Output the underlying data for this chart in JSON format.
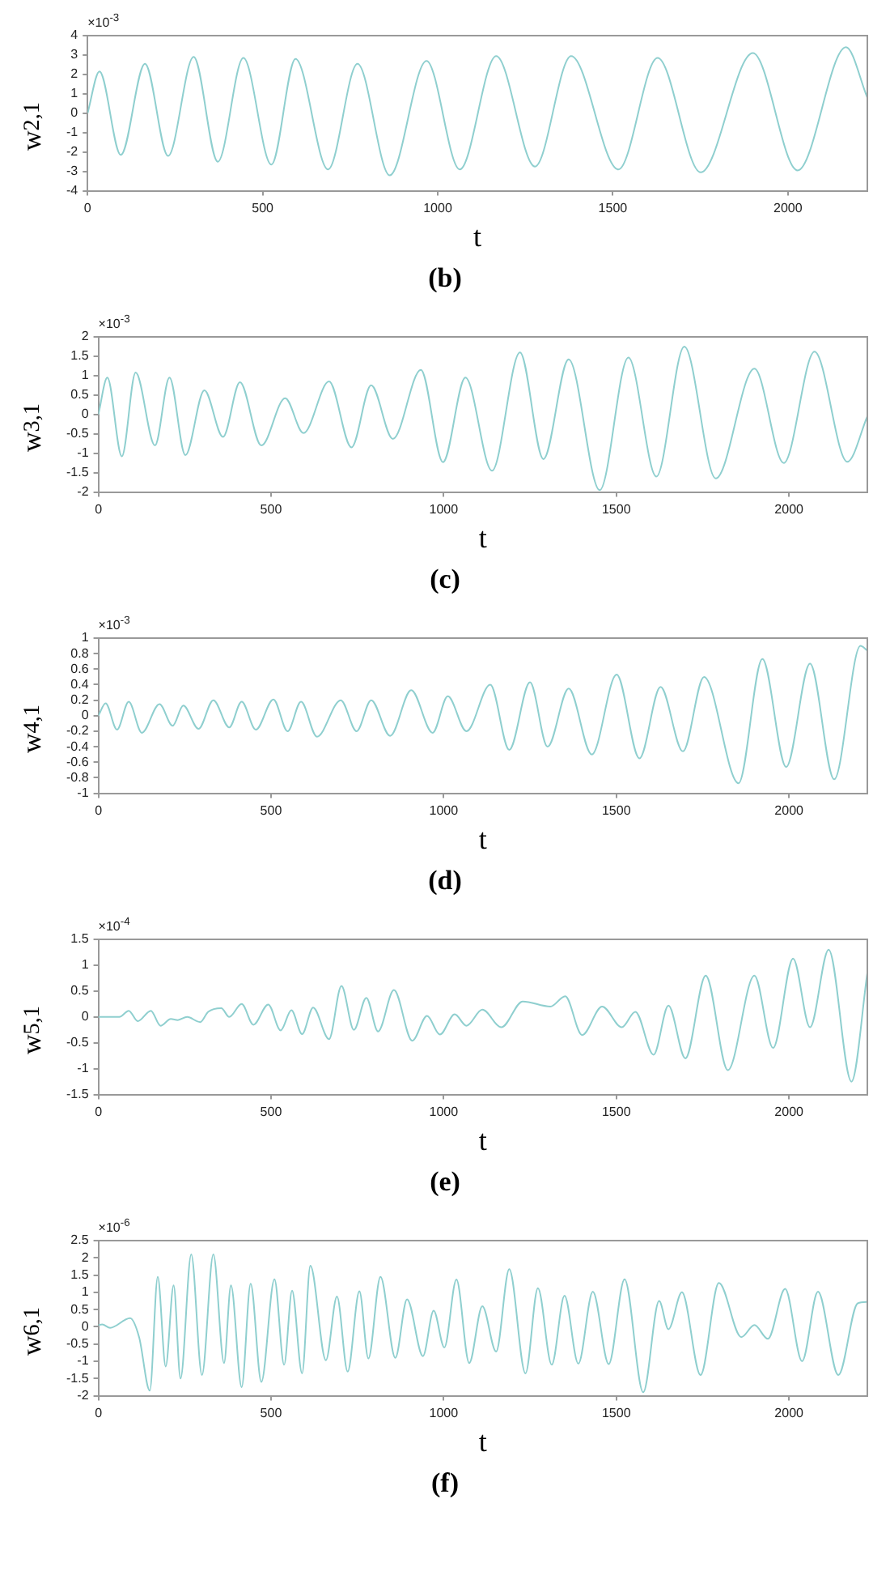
{
  "chart_data": [
    {
      "type": "line",
      "xlabel": "t",
      "ylabel": "w$_{2,1}$",
      "annotations": [
        "×10$^{-3}$",
        "(b)"
      ],
      "xlim": [
        0,
        2227
      ],
      "xticks": [
        0,
        500,
        1000,
        1500,
        2000
      ],
      "ylim": [
        -4,
        4
      ],
      "yticks": [
        -4,
        -3,
        -2,
        -1,
        0,
        1,
        2,
        3,
        4
      ],
      "grid": false,
      "legend": false,
      "marker": "none",
      "series": [
        {
          "color": "#8fcfcf",
          "x": [
            0,
            34,
            95,
            164,
            230,
            303,
            372,
            445,
            525,
            594,
            687,
            771,
            863,
            968,
            1063,
            1167,
            1278,
            1381,
            1516,
            1628,
            1751,
            1900,
            2028,
            2166,
            2227
          ],
          "values": [
            0,
            2.15,
            -2.15,
            2.55,
            -2.2,
            2.9,
            -2.5,
            2.85,
            -2.65,
            2.8,
            -2.9,
            2.55,
            -3.2,
            2.7,
            -2.9,
            2.95,
            -2.75,
            2.95,
            -2.9,
            2.85,
            -3.05,
            3.1,
            -2.95,
            3.4,
            0.8
          ]
        }
      ]
    },
    {
      "type": "line",
      "xlabel": "t",
      "ylabel": "w$_{3,1}$",
      "annotations": [
        "×10$^{-3}$",
        "(c)"
      ],
      "xlim": [
        0,
        2227
      ],
      "xticks": [
        0,
        500,
        1000,
        1500,
        2000
      ],
      "ylim": [
        -2,
        2
      ],
      "yticks": [
        -2,
        -1.5,
        -1,
        -0.5,
        0,
        0.5,
        1,
        1.5,
        2
      ],
      "grid": false,
      "legend": false,
      "marker": "none",
      "series": [
        {
          "color": "#8fcfcf",
          "x": [
            0,
            26,
            68,
            108,
            164,
            206,
            252,
            307,
            361,
            410,
            472,
            541,
            594,
            668,
            733,
            790,
            853,
            934,
            998,
            1063,
            1140,
            1221,
            1289,
            1362,
            1452,
            1535,
            1616,
            1697,
            1788,
            1900,
            1985,
            2074,
            2169,
            2227
          ],
          "values": [
            0,
            0.95,
            -1.08,
            1.08,
            -0.8,
            0.95,
            -1.05,
            0.62,
            -0.58,
            0.83,
            -0.8,
            0.42,
            -0.48,
            0.85,
            -0.85,
            0.75,
            -0.63,
            1.15,
            -1.23,
            0.95,
            -1.45,
            1.6,
            -1.15,
            1.42,
            -1.95,
            1.47,
            -1.6,
            1.75,
            -1.65,
            1.18,
            -1.25,
            1.62,
            -1.22,
            -0.05
          ]
        }
      ]
    },
    {
      "type": "line",
      "xlabel": "t",
      "ylabel": "w$_{4,1}$",
      "annotations": [
        "×10$^{-3}$",
        "(d)"
      ],
      "xlim": [
        0,
        2227
      ],
      "xticks": [
        0,
        500,
        1000,
        1500,
        2000
      ],
      "ylim": [
        -1,
        1
      ],
      "yticks": [
        -1,
        -0.8,
        -0.6,
        -0.4,
        -0.2,
        0,
        0.2,
        0.4,
        0.6,
        0.8,
        1
      ],
      "grid": false,
      "legend": false,
      "marker": "none",
      "series": [
        {
          "color": "#8fcfcf",
          "x": [
            0,
            21,
            54,
            88,
            126,
            177,
            215,
            246,
            290,
            333,
            379,
            415,
            456,
            507,
            548,
            587,
            633,
            702,
            748,
            790,
            845,
            906,
            968,
            1012,
            1066,
            1135,
            1190,
            1250,
            1301,
            1362,
            1429,
            1501,
            1567,
            1628,
            1693,
            1754,
            1854,
            1923,
            1992,
            2061,
            2131,
            2207,
            2227
          ],
          "values": [
            0,
            0.16,
            -0.18,
            0.18,
            -0.22,
            0.15,
            -0.13,
            0.13,
            -0.17,
            0.2,
            -0.15,
            0.18,
            -0.18,
            0.21,
            -0.2,
            0.18,
            -0.27,
            0.2,
            -0.2,
            0.2,
            -0.26,
            0.33,
            -0.22,
            0.25,
            -0.2,
            0.4,
            -0.44,
            0.43,
            -0.4,
            0.35,
            -0.5,
            0.53,
            -0.55,
            0.37,
            -0.46,
            0.5,
            -0.87,
            0.73,
            -0.66,
            0.67,
            -0.82,
            0.9,
            0.84
          ]
        }
      ]
    },
    {
      "type": "line",
      "xlabel": "t",
      "ylabel": "w$_{5,1}$",
      "annotations": [
        "×10$^{-4}$",
        "(e)"
      ],
      "xlim": [
        0,
        2227
      ],
      "xticks": [
        0,
        500,
        1000,
        1500,
        2000
      ],
      "ylim": [
        -1.5,
        1.5
      ],
      "yticks": [
        -1.5,
        -1,
        -0.5,
        0,
        0.5,
        1,
        1.5
      ],
      "grid": false,
      "legend": false,
      "marker": "none",
      "series": [
        {
          "color": "#8fcfcf",
          "x": [
            0,
            61,
            88,
            114,
            152,
            180,
            210,
            230,
            257,
            295,
            318,
            356,
            379,
            415,
            449,
            492,
            528,
            559,
            590,
            622,
            668,
            704,
            740,
            776,
            810,
            856,
            909,
            952,
            989,
            1032,
            1066,
            1112,
            1167,
            1229,
            1309,
            1352,
            1401,
            1459,
            1516,
            1555,
            1608,
            1651,
            1700,
            1759,
            1823,
            1900,
            1954,
            2012,
            2061,
            2115,
            2181,
            2227
          ],
          "values": [
            0,
            0,
            0.12,
            -0.08,
            0.12,
            -0.17,
            -0.04,
            -0.06,
            0,
            -0.1,
            0.1,
            0.17,
            0,
            0.25,
            -0.15,
            0.24,
            -0.26,
            0.13,
            -0.33,
            0.18,
            -0.43,
            0.6,
            -0.25,
            0.37,
            -0.28,
            0.52,
            -0.46,
            0.02,
            -0.34,
            0.05,
            -0.17,
            0.14,
            -0.2,
            0.3,
            0.2,
            0.4,
            -0.35,
            0.2,
            -0.2,
            0.1,
            -0.73,
            0.22,
            -0.8,
            0.8,
            -1.03,
            0.8,
            -0.6,
            1.13,
            -0.2,
            1.3,
            -1.25,
            0.85
          ]
        }
      ]
    },
    {
      "type": "line",
      "xlabel": "t",
      "ylabel": "w$_{6,1}$",
      "annotations": [
        "×10$^{-6}$",
        "(f)"
      ],
      "xlim": [
        0,
        2227
      ],
      "xticks": [
        0,
        500,
        1000,
        1500,
        2000
      ],
      "ylim": [
        -2,
        2.5
      ],
      "yticks": [
        -2,
        -1.5,
        -1,
        -0.5,
        0,
        0.5,
        1,
        1.5,
        2,
        2.5
      ],
      "grid": false,
      "legend": false,
      "marker": "none",
      "series": [
        {
          "color": "#8fcfcf",
          "x": [
            0,
            11,
            34,
            92,
            118,
            149,
            172,
            195,
            218,
            238,
            269,
            300,
            333,
            364,
            384,
            415,
            441,
            472,
            510,
            538,
            561,
            590,
            614,
            659,
            691,
            722,
            756,
            782,
            817,
            860,
            894,
            940,
            971,
            1002,
            1037,
            1074,
            1112,
            1152,
            1190,
            1237,
            1273,
            1313,
            1350,
            1390,
            1432,
            1478,
            1524,
            1578,
            1624,
            1651,
            1690,
            1744,
            1797,
            1862,
            1900,
            1939,
            1989,
            2038,
            2084,
            2143,
            2199,
            2227
          ],
          "values": [
            0.05,
            0.07,
            -0.03,
            0.25,
            -0.3,
            -1.85,
            1.45,
            -1.15,
            1.2,
            -1.5,
            2.1,
            -1.4,
            2.1,
            -1.05,
            1.2,
            -1.75,
            1.25,
            -1.6,
            1.38,
            -1.1,
            1.05,
            -1.35,
            1.77,
            -0.97,
            0.88,
            -1.3,
            1.03,
            -0.92,
            1.45,
            -0.9,
            0.8,
            -0.85,
            0.47,
            -0.6,
            1.37,
            -1.05,
            0.6,
            -0.72,
            1.67,
            -1.35,
            1.12,
            -1.1,
            0.9,
            -1.07,
            1.02,
            -1.08,
            1.38,
            -1.9,
            0.75,
            -0.07,
            1,
            -1.4,
            1.27,
            -0.3,
            0.05,
            -0.35,
            1.1,
            -1,
            1.02,
            -1.4,
            0.68,
            0.72
          ]
        }
      ]
    }
  ]
}
